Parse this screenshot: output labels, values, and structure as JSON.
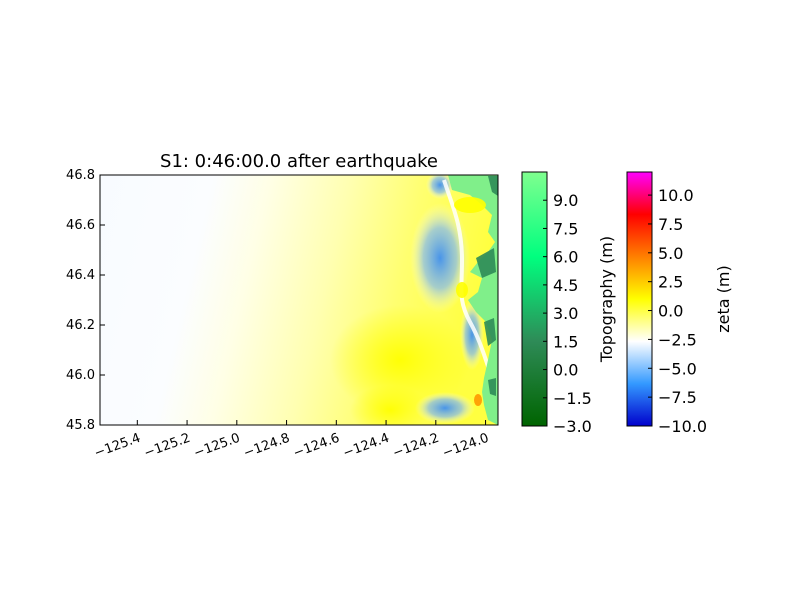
{
  "chart_data": {
    "type": "heatmap",
    "title": "S1: 0:46:00.0 after earthquake",
    "xlabel": "",
    "ylabel": "",
    "xlim": [
      -125.55,
      -123.95
    ],
    "ylim": [
      45.8,
      46.8
    ],
    "x_ticks": [
      "−125.4",
      "−125.2",
      "−125.0",
      "−124.8",
      "−124.6",
      "−124.4",
      "−124.2",
      "−124.0"
    ],
    "x_tick_values": [
      -125.4,
      -125.2,
      -125.0,
      -124.8,
      -124.6,
      -124.4,
      -124.2,
      -124.0
    ],
    "y_ticks": [
      "45.8",
      "46.0",
      "46.2",
      "46.4",
      "46.6",
      "46.8"
    ],
    "y_tick_values": [
      45.8,
      46.0,
      46.2,
      46.4,
      46.6,
      46.8
    ],
    "colorbars": [
      {
        "label": "Topography (m)",
        "range": [
          -3.0,
          10.5
        ],
        "ticks": [
          "−3.0",
          "−1.5",
          "0.0",
          "1.5",
          "3.0",
          "4.5",
          "6.0",
          "7.5",
          "9.0"
        ],
        "tick_values": [
          -3.0,
          -1.5,
          0.0,
          1.5,
          3.0,
          4.5,
          6.0,
          7.5,
          9.0
        ],
        "colors": [
          "#006400",
          "#2e8b57",
          "#00ff7f",
          "#7fff8f"
        ]
      },
      {
        "label": "zeta (m)",
        "range": [
          -10.0,
          12.0
        ],
        "ticks": [
          "−10.0",
          "−7.5",
          "−5.0",
          "−2.5",
          "0.0",
          "2.5",
          "5.0",
          "7.5",
          "10.0"
        ],
        "tick_values": [
          -10.0,
          -7.5,
          -5.0,
          -2.5,
          0.0,
          2.5,
          5.0,
          7.5,
          10.0
        ],
        "colors": [
          "#0000cc",
          "#3399ff",
          "#ffffff",
          "#ffff00",
          "#ff8000",
          "#ff0000",
          "#ff00ff"
        ]
      }
    ]
  }
}
